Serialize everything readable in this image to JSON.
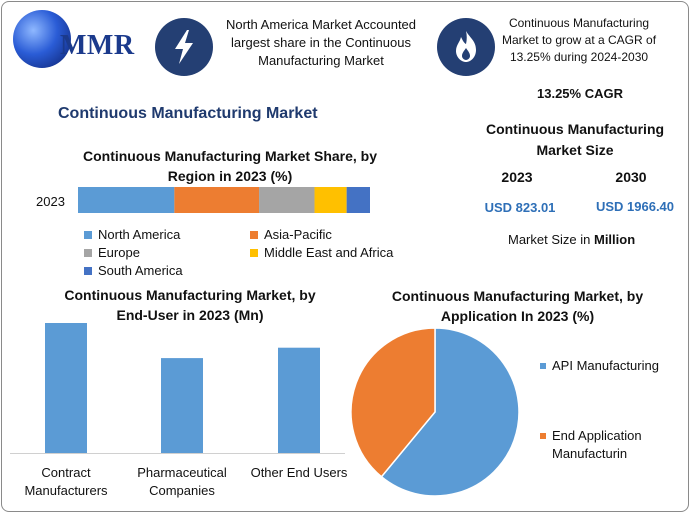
{
  "header": {
    "logo_text": "MMR",
    "headline_1": "North America Market Accounted largest share in the Continuous Manufacturing Market",
    "headline_2": "Continuous Manufacturing Market to grow at a CAGR of 13.25% during 2024-2030",
    "lightning_icon": "lightning-icon",
    "flame_icon": "flame-icon"
  },
  "main_title": "Continuous Manufacturing Market",
  "kpis": {
    "cagr": "13.25% CAGR",
    "size_title": "Continuous Manufacturing Market Size",
    "year_1": "2023",
    "year_2": "2030",
    "value_1": "USD 823.01",
    "value_2": "USD 1966.40",
    "unit_note_prefix": "Market Size in ",
    "unit_note_bold": "Million",
    "value_color": "#2e6fb7"
  },
  "chart_data": [
    {
      "type": "bar",
      "orientation": "horizontal-stacked",
      "title": "Continuous Manufacturing Market Share, by Region in 2023 (%)",
      "categories": [
        "2023"
      ],
      "series": [
        {
          "name": "North America",
          "values": [
            33
          ],
          "color": "#5b9bd5"
        },
        {
          "name": "Asia-Pacific",
          "values": [
            29
          ],
          "color": "#ed7d31"
        },
        {
          "name": "Europe",
          "values": [
            19
          ],
          "color": "#a5a5a5"
        },
        {
          "name": "Middle East and Africa",
          "values": [
            11
          ],
          "color": "#ffc000"
        },
        {
          "name": "South America",
          "values": [
            8
          ],
          "color": "#4472c4"
        }
      ],
      "legend": "bottom"
    },
    {
      "type": "bar",
      "title": "Continuous Manufacturing Market, by End-User in 2023 (Mn)",
      "categories": [
        "Contract Manufacturers",
        "Pharmaceutical Companies",
        "Other End Users"
      ],
      "values": [
        100,
        73,
        81
      ],
      "color": "#5b9bd5",
      "ylim": [
        0,
        100
      ],
      "grid": false
    },
    {
      "type": "pie",
      "title": "Continuous Manufacturing Market, by Application In 2023 (%)",
      "categories": [
        "API Manufacturing",
        "End Application Manufacturin"
      ],
      "values": [
        61,
        39
      ],
      "colors": [
        "#5b9bd5",
        "#ed7d31"
      ],
      "legend": "right"
    }
  ]
}
